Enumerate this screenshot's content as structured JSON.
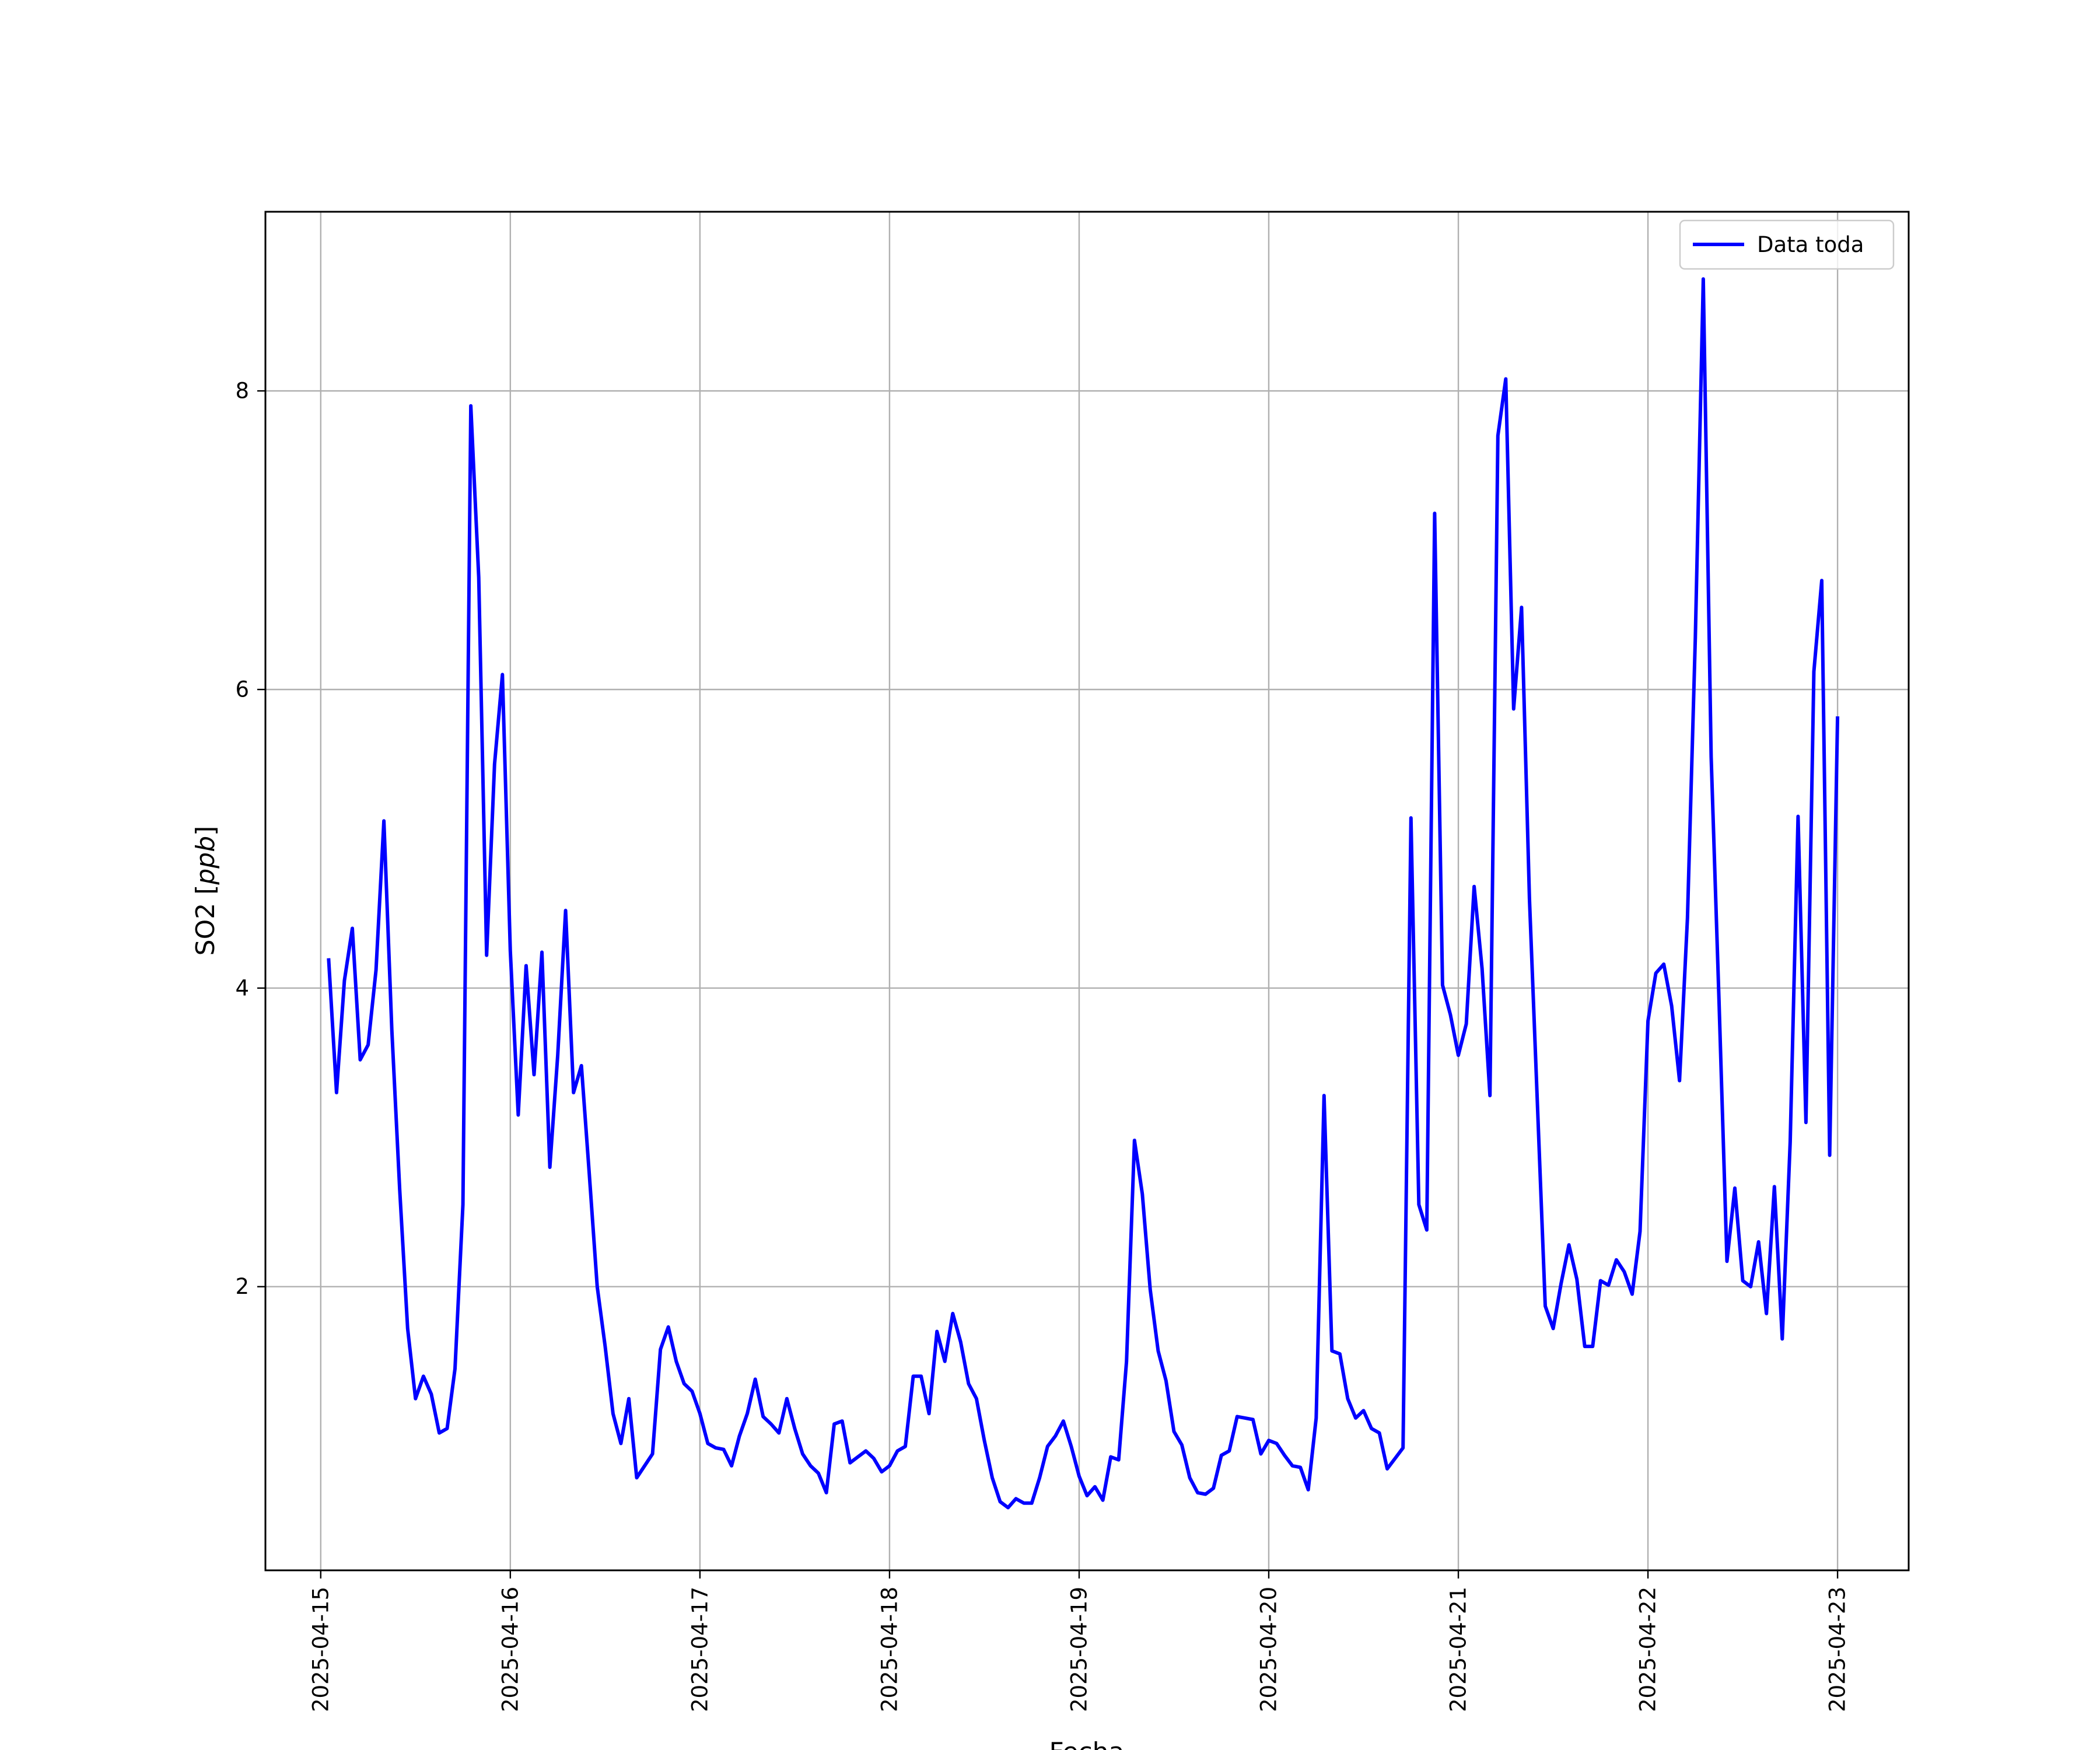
{
  "chart_data": {
    "type": "line",
    "xlabel": "Fecha",
    "ylabel": "SO2 [",
    "ylabel_unit": "ppb",
    "ylabel_close": "]",
    "xlim": [
      "2025-04-14 17:00",
      "2025-04-23 09:00"
    ],
    "ylim": [
      0.1,
      9.2
    ],
    "grid": true,
    "legend_position": "top-right",
    "line_color": "#0000ff",
    "x_ticks": [
      "2025-04-15",
      "2025-04-16",
      "2025-04-17",
      "2025-04-18",
      "2025-04-19",
      "2025-04-20",
      "2025-04-21",
      "2025-04-22",
      "2025-04-23"
    ],
    "y_ticks": [
      2,
      4,
      6,
      8
    ],
    "series": [
      {
        "name": "Data toda",
        "color": "#0000ff",
        "start": "2025-04-15 01:00",
        "interval_hours": 1,
        "values": [
          4.2,
          3.3,
          4.05,
          4.4,
          3.52,
          3.62,
          4.12,
          5.12,
          3.72,
          2.65,
          1.72,
          1.25,
          1.4,
          1.28,
          1.02,
          1.05,
          1.45,
          2.55,
          7.9,
          6.75,
          4.22,
          5.5,
          6.1,
          4.25,
          3.15,
          4.15,
          3.42,
          4.24,
          2.8,
          3.55,
          4.52,
          3.3,
          3.48,
          2.75,
          2.0,
          1.6,
          1.15,
          0.95,
          1.25,
          0.72,
          0.8,
          0.88,
          1.58,
          1.73,
          1.5,
          1.35,
          1.3,
          1.15,
          0.95,
          0.92,
          0.91,
          0.8,
          1.0,
          1.15,
          1.38,
          1.13,
          1.08,
          1.02,
          1.25,
          1.05,
          0.88,
          0.8,
          0.75,
          0.62,
          1.08,
          1.1,
          0.82,
          0.86,
          0.9,
          0.85,
          0.76,
          0.8,
          0.9,
          0.93,
          1.4,
          1.4,
          1.15,
          1.7,
          1.5,
          1.82,
          1.63,
          1.35,
          1.25,
          0.97,
          0.72,
          0.56,
          0.52,
          0.58,
          0.55,
          0.55,
          0.72,
          0.93,
          1.0,
          1.1,
          0.93,
          0.73,
          0.6,
          0.66,
          0.57,
          0.86,
          0.84,
          1.5,
          2.98,
          2.62,
          1.98,
          1.57,
          1.37,
          1.03,
          0.94,
          0.72,
          0.62,
          0.61,
          0.65,
          0.87,
          0.9,
          1.13,
          1.12,
          1.11,
          0.88,
          0.97,
          0.95,
          0.87,
          0.8,
          0.79,
          0.64,
          1.12,
          3.28,
          1.57,
          1.55,
          1.25,
          1.12,
          1.17,
          1.05,
          1.02,
          0.78,
          0.85,
          0.92,
          5.14,
          2.55,
          2.38,
          7.18,
          4.02,
          3.82,
          3.55,
          3.76,
          4.68,
          4.13,
          3.28,
          7.7,
          8.08,
          5.87,
          6.55,
          4.6,
          3.23,
          1.87,
          1.72,
          2.02,
          2.28,
          2.05,
          1.6,
          1.6,
          2.04,
          2.01,
          2.18,
          2.1,
          1.95,
          2.37,
          3.78,
          4.1,
          4.16,
          3.88,
          3.38,
          4.47,
          6.35,
          8.75,
          5.55,
          3.9,
          2.17,
          2.66,
          2.04,
          2.0,
          2.3,
          1.82,
          2.67,
          1.65,
          2.97,
          5.15,
          3.1,
          6.12,
          6.73,
          2.88,
          5.82
        ]
      }
    ]
  }
}
